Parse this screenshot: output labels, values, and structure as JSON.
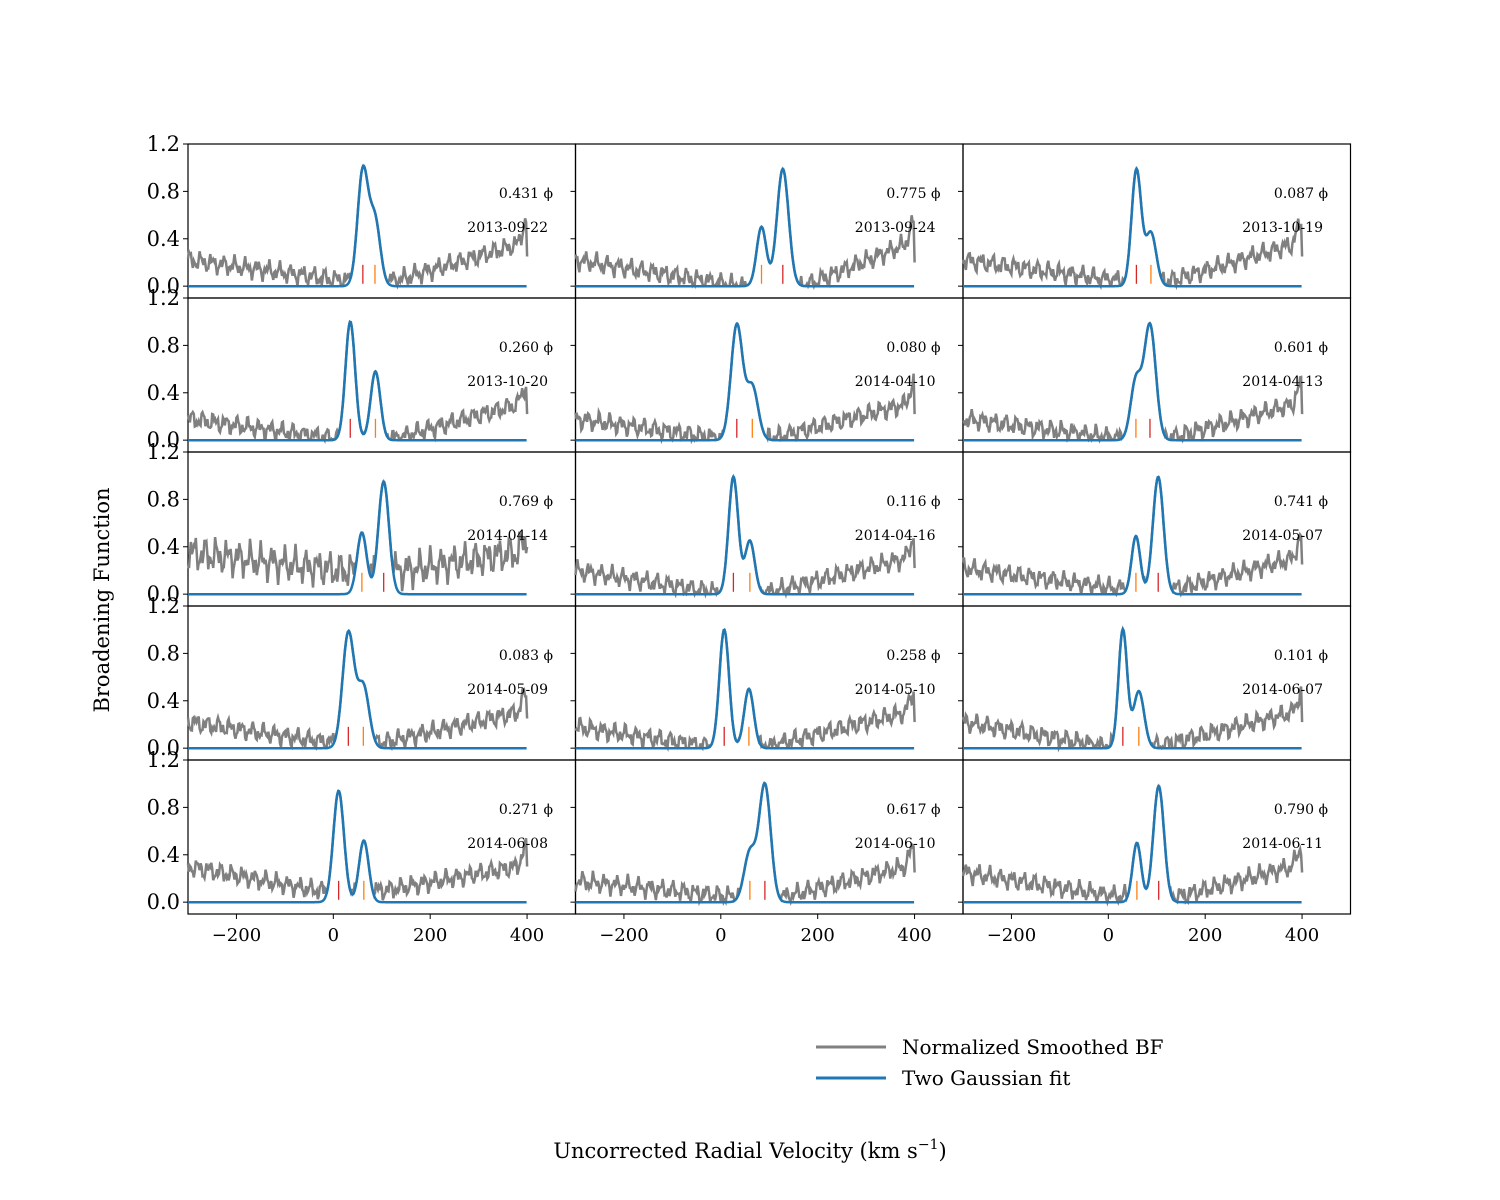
{
  "figure": {
    "ylabel": "Broadening Function",
    "xlabel": "Uncorrected Radial Velocity (km s",
    "xlabel_sup": "−1",
    "xlabel_close": ")",
    "legend": [
      {
        "label": "Normalized Smoothed BF",
        "color": "#808080"
      },
      {
        "label": "Two Gaussian fit",
        "color": "#1f77b4"
      }
    ],
    "phase_symbol": "ϕ",
    "colors": {
      "bf": "#808080",
      "fit": "#1f77b4",
      "marker_red": "#d62728",
      "marker_orange": "#ff7f0e"
    }
  },
  "chart_data": {
    "type": "line",
    "grid": false,
    "legend_position": "bottom-right",
    "xlim": [
      -300,
      500
    ],
    "ylim": [
      -0.1,
      1.2
    ],
    "xticks": [
      -200,
      0,
      200,
      400
    ],
    "yticks": [
      0.0,
      0.4,
      0.8,
      1.2
    ],
    "xtick_labels": [
      "−200",
      "0",
      "200",
      "400"
    ],
    "ytick_labels": [
      "0.0",
      "0.4",
      "0.8",
      "1.2"
    ],
    "series_names": [
      "Normalized Smoothed BF",
      "Two Gaussian fit"
    ],
    "panels": [
      {
        "date": "2013-09-22",
        "phase": "0.431",
        "peaks": [
          {
            "center": 61,
            "amp": 0.97,
            "sigma": 11
          },
          {
            "center": 86,
            "amp": 0.55,
            "sigma": 11
          }
        ],
        "markers": [
          {
            "x": 61,
            "color": "red"
          },
          {
            "x": 86,
            "color": "orange"
          }
        ],
        "bf_left": 0.22,
        "bf_mid": 0.05,
        "bf_right": 0.35,
        "bf_end": 0.52
      },
      {
        "date": "2013-09-24",
        "phase": "0.775",
        "peaks": [
          {
            "center": 84,
            "amp": 0.5,
            "sigma": 10
          },
          {
            "center": 128,
            "amp": 0.99,
            "sigma": 12
          }
        ],
        "markers": [
          {
            "x": 84,
            "color": "orange"
          },
          {
            "x": 128,
            "color": "red"
          }
        ],
        "bf_left": 0.22,
        "bf_mid": 0.0,
        "bf_right": 0.35,
        "bf_end": 0.52
      },
      {
        "date": "2013-10-19",
        "phase": "0.087",
        "peaks": [
          {
            "center": 58,
            "amp": 0.98,
            "sigma": 10
          },
          {
            "center": 88,
            "amp": 0.45,
            "sigma": 11
          }
        ],
        "markers": [
          {
            "x": 58,
            "color": "red"
          },
          {
            "x": 88,
            "color": "orange"
          }
        ],
        "bf_left": 0.22,
        "bf_mid": 0.05,
        "bf_right": 0.35,
        "bf_end": 0.52
      },
      {
        "date": "2013-10-20",
        "phase": "0.260",
        "peaks": [
          {
            "center": 35,
            "amp": 1.0,
            "sigma": 10
          },
          {
            "center": 87,
            "amp": 0.58,
            "sigma": 10
          }
        ],
        "markers": [
          {
            "x": 35,
            "color": "red"
          },
          {
            "x": 87,
            "color": "orange"
          }
        ],
        "bf_left": 0.18,
        "bf_mid": 0.02,
        "bf_right": 0.3,
        "bf_end": 0.45
      },
      {
        "date": "2014-04-10",
        "phase": "0.080",
        "peaks": [
          {
            "center": 33,
            "amp": 0.97,
            "sigma": 12
          },
          {
            "center": 65,
            "amp": 0.45,
            "sigma": 12
          }
        ],
        "markers": [
          {
            "x": 33,
            "color": "red"
          },
          {
            "x": 65,
            "color": "orange"
          }
        ],
        "bf_left": 0.18,
        "bf_mid": 0.02,
        "bf_right": 0.3,
        "bf_end": 0.45
      },
      {
        "date": "2014-04-13",
        "phase": "0.601",
        "peaks": [
          {
            "center": 57,
            "amp": 0.5,
            "sigma": 11
          },
          {
            "center": 86,
            "amp": 0.97,
            "sigma": 12
          }
        ],
        "markers": [
          {
            "x": 57,
            "color": "orange"
          },
          {
            "x": 86,
            "color": "red"
          }
        ],
        "bf_left": 0.18,
        "bf_mid": 0.02,
        "bf_right": 0.3,
        "bf_end": 0.45
      },
      {
        "date": "2014-04-14",
        "phase": "0.769",
        "peaks": [
          {
            "center": 59,
            "amp": 0.52,
            "sigma": 10
          },
          {
            "center": 104,
            "amp": 0.95,
            "sigma": 11
          }
        ],
        "markers": [
          {
            "x": 59,
            "color": "orange"
          },
          {
            "x": 104,
            "color": "red"
          }
        ],
        "bf_left": 0.35,
        "bf_mid": 0.2,
        "bf_right": 0.35,
        "bf_end": 0.45
      },
      {
        "date": "2014-04-16",
        "phase": "0.116",
        "peaks": [
          {
            "center": 26,
            "amp": 0.99,
            "sigma": 10
          },
          {
            "center": 60,
            "amp": 0.45,
            "sigma": 10
          }
        ],
        "markers": [
          {
            "x": 26,
            "color": "red"
          },
          {
            "x": 60,
            "color": "orange"
          }
        ],
        "bf_left": 0.2,
        "bf_mid": 0.02,
        "bf_right": 0.3,
        "bf_end": 0.45
      },
      {
        "date": "2014-05-07",
        "phase": "0.741",
        "peaks": [
          {
            "center": 57,
            "amp": 0.49,
            "sigma": 9
          },
          {
            "center": 103,
            "amp": 0.99,
            "sigma": 11
          }
        ],
        "markers": [
          {
            "x": 57,
            "color": "orange"
          },
          {
            "x": 103,
            "color": "red"
          }
        ],
        "bf_left": 0.22,
        "bf_mid": 0.05,
        "bf_right": 0.3,
        "bf_end": 0.45
      },
      {
        "date": "2014-05-09",
        "phase": "0.083",
        "peaks": [
          {
            "center": 31,
            "amp": 0.97,
            "sigma": 12
          },
          {
            "center": 62,
            "amp": 0.52,
            "sigma": 12
          }
        ],
        "markers": [
          {
            "x": 31,
            "color": "red"
          },
          {
            "x": 62,
            "color": "orange"
          }
        ],
        "bf_left": 0.22,
        "bf_mid": 0.05,
        "bf_right": 0.3,
        "bf_end": 0.45
      },
      {
        "date": "2014-05-10",
        "phase": "0.258",
        "peaks": [
          {
            "center": 7,
            "amp": 1.0,
            "sigma": 10
          },
          {
            "center": 58,
            "amp": 0.5,
            "sigma": 10
          }
        ],
        "markers": [
          {
            "x": 7,
            "color": "red"
          },
          {
            "x": 58,
            "color": "orange"
          }
        ],
        "bf_left": 0.18,
        "bf_mid": 0.02,
        "bf_right": 0.3,
        "bf_end": 0.45
      },
      {
        "date": "2014-06-07",
        "phase": "0.101",
        "peaks": [
          {
            "center": 30,
            "amp": 1.0,
            "sigma": 9
          },
          {
            "center": 63,
            "amp": 0.48,
            "sigma": 11
          }
        ],
        "markers": [
          {
            "x": 30,
            "color": "red"
          },
          {
            "x": 63,
            "color": "orange"
          }
        ],
        "bf_left": 0.22,
        "bf_mid": 0.02,
        "bf_right": 0.3,
        "bf_end": 0.45
      },
      {
        "date": "2014-06-08",
        "phase": "0.271",
        "peaks": [
          {
            "center": 11,
            "amp": 0.94,
            "sigma": 11
          },
          {
            "center": 63,
            "amp": 0.52,
            "sigma": 10
          }
        ],
        "markers": [
          {
            "x": 11,
            "color": "red"
          },
          {
            "x": 63,
            "color": "orange"
          }
        ],
        "bf_left": 0.3,
        "bf_mid": 0.1,
        "bf_right": 0.3,
        "bf_end": 0.45
      },
      {
        "date": "2014-06-10",
        "phase": "0.617",
        "peaks": [
          {
            "center": 60,
            "amp": 0.42,
            "sigma": 12
          },
          {
            "center": 91,
            "amp": 0.99,
            "sigma": 12
          }
        ],
        "markers": [
          {
            "x": 60,
            "color": "orange"
          },
          {
            "x": 91,
            "color": "red"
          }
        ],
        "bf_left": 0.18,
        "bf_mid": 0.05,
        "bf_right": 0.3,
        "bf_end": 0.45
      },
      {
        "date": "2014-06-11",
        "phase": "0.790",
        "peaks": [
          {
            "center": 59,
            "amp": 0.5,
            "sigma": 9
          },
          {
            "center": 104,
            "amp": 0.98,
            "sigma": 11
          }
        ],
        "markers": [
          {
            "x": 59,
            "color": "orange"
          },
          {
            "x": 104,
            "color": "red"
          }
        ],
        "bf_left": 0.25,
        "bf_mid": 0.05,
        "bf_right": 0.3,
        "bf_end": 0.45
      }
    ]
  }
}
